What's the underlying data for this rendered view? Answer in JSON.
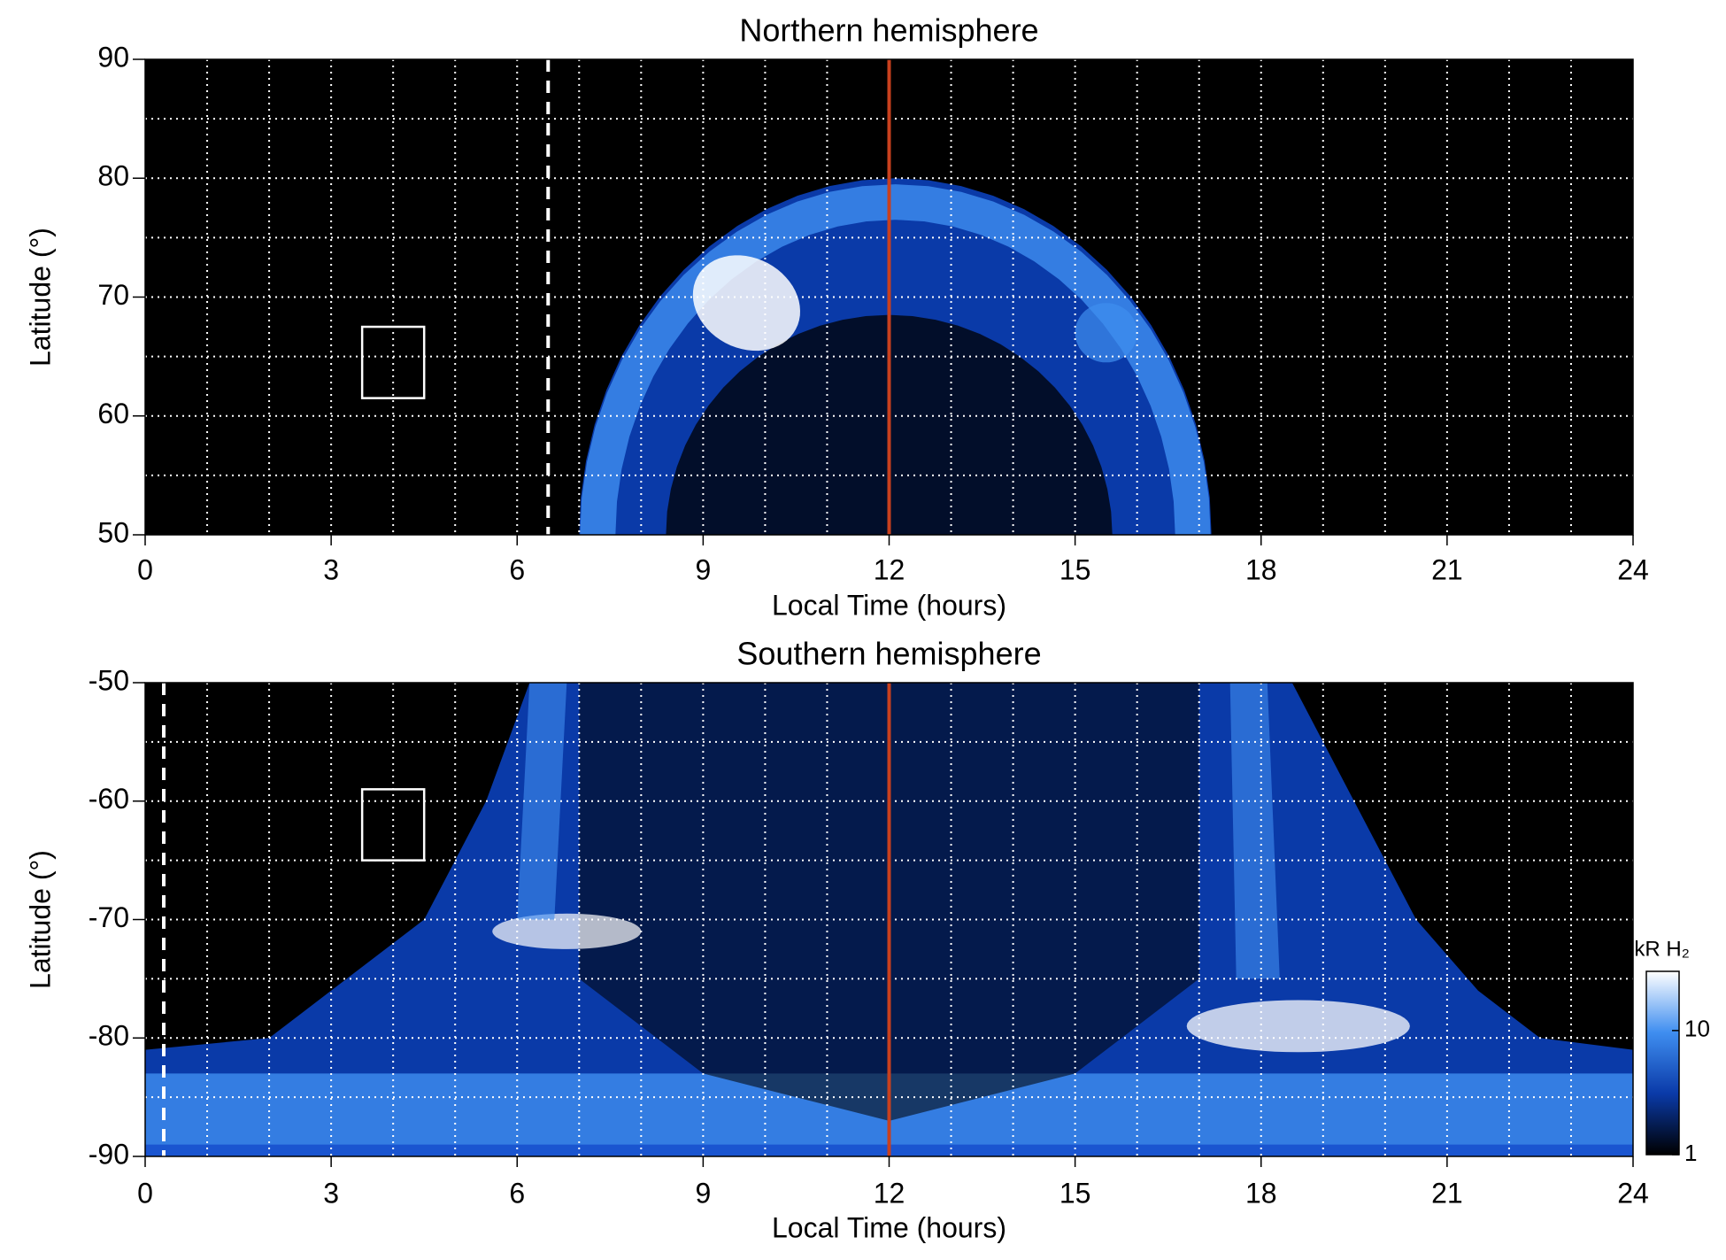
{
  "chart_data": [
    {
      "type": "heatmap",
      "title": "Northern hemisphere",
      "xlabel": "Local Time (hours)",
      "ylabel": "Latitude (°)",
      "xlim": [
        0,
        24
      ],
      "ylim": [
        50,
        90
      ],
      "xticks": [
        0,
        3,
        6,
        9,
        12,
        15,
        18,
        21,
        24
      ],
      "yticks": [
        50,
        60,
        70,
        80,
        90
      ],
      "grid": true,
      "xgrid": [
        1,
        2,
        3,
        4,
        5,
        6,
        7,
        8,
        9,
        10,
        11,
        12,
        13,
        14,
        15,
        16,
        17,
        18,
        19,
        20,
        21,
        22,
        23
      ],
      "ygrid": [
        55,
        60,
        65,
        70,
        75,
        80,
        85
      ],
      "colormap": [
        "#000000",
        "#0a3aa8",
        "#3f8ef0",
        "#ffffff"
      ],
      "vlines": [
        {
          "x": 12,
          "color": "#c8401e",
          "dash": false
        },
        {
          "x": 6.5,
          "color": "#ffffff",
          "dash": true
        }
      ],
      "boxes": [
        {
          "x": [
            3.5,
            4.5
          ],
          "y": [
            61.5,
            67.5
          ]
        }
      ]
    },
    {
      "type": "heatmap",
      "title": "Southern hemisphere",
      "xlabel": "Local Time (hours)",
      "ylabel": "Latitude (°)",
      "xlim": [
        0,
        24
      ],
      "ylim": [
        -90,
        -50
      ],
      "xticks": [
        0,
        3,
        6,
        9,
        12,
        15,
        18,
        21,
        24
      ],
      "yticks": [
        -90,
        -80,
        -70,
        -60,
        -50
      ],
      "grid": true,
      "xgrid": [
        1,
        2,
        3,
        4,
        5,
        6,
        7,
        8,
        9,
        10,
        11,
        12,
        13,
        14,
        15,
        16,
        17,
        18,
        19,
        20,
        21,
        22,
        23
      ],
      "ygrid": [
        -85,
        -80,
        -75,
        -70,
        -65,
        -60,
        -55
      ],
      "colormap": [
        "#000000",
        "#0a3aa8",
        "#3f8ef0",
        "#ffffff"
      ],
      "vlines": [
        {
          "x": 12,
          "color": "#c8401e",
          "dash": false
        },
        {
          "x": 0.3,
          "color": "#ffffff",
          "dash": true
        }
      ],
      "boxes": [
        {
          "x": [
            3.5,
            4.5
          ],
          "y": [
            -65,
            -59
          ]
        }
      ],
      "colorbar": {
        "label": "kR H₂",
        "scale": "log",
        "lim": [
          1,
          30
        ],
        "ticks": [
          1,
          10
        ]
      }
    }
  ]
}
